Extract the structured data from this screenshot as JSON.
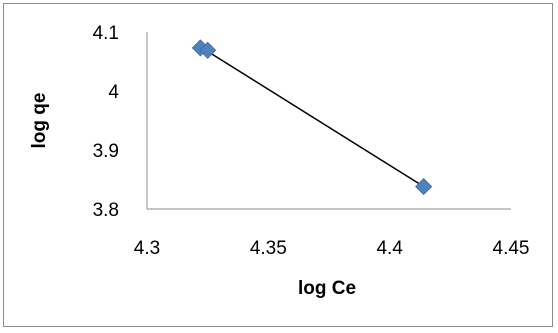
{
  "chart_data": {
    "type": "scatter",
    "title": "",
    "xlabel": "log Ce",
    "ylabel": "log qe",
    "xlim": [
      4.3,
      4.45
    ],
    "ylim": [
      3.8,
      4.1
    ],
    "x_ticks": [
      "4.3",
      "4.35",
      "4.4",
      "4.45"
    ],
    "y_ticks": [
      "3.8",
      "3.9",
      "4",
      "4.1"
    ],
    "grid": false,
    "legend": "none",
    "series": [
      {
        "x": [
          4.322,
          4.325,
          4.414
        ],
        "y": [
          4.073,
          4.069,
          3.838
        ],
        "marker": "diamond",
        "color": "#4f81bd"
      }
    ],
    "trendline": {
      "type": "linear",
      "color": "#000000"
    }
  }
}
